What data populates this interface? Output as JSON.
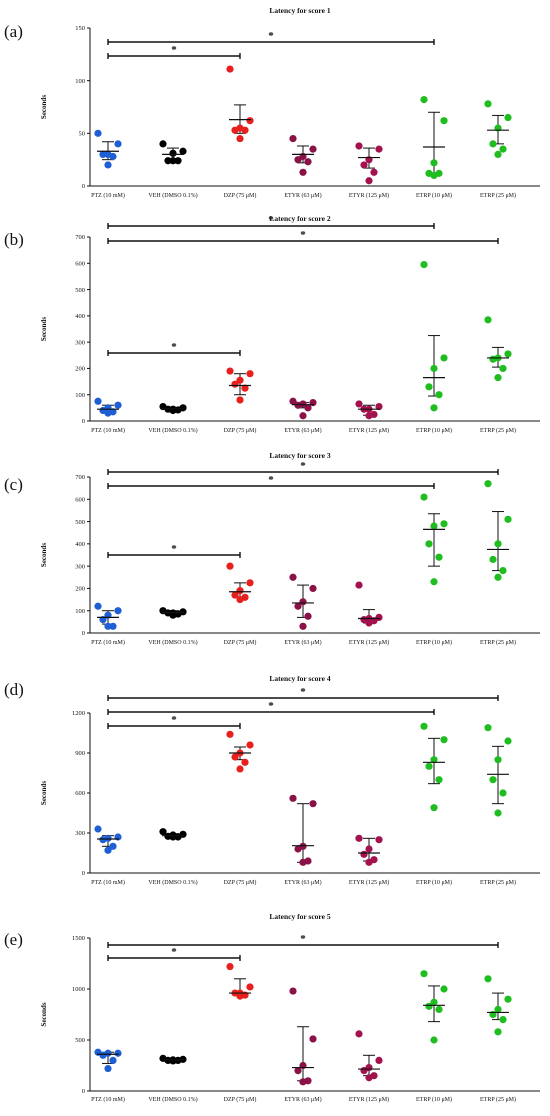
{
  "chart_data": [
    {
      "type": "scatter",
      "panel_label": "(a)",
      "title": "Latency for score 1",
      "ylabel": "Seconds",
      "ylim": [
        0,
        150
      ],
      "yticks": [
        "0",
        "50",
        "100",
        "150"
      ],
      "categories": [
        "PTZ (10 mM)",
        "VEH (DMSO 0.1%)",
        "DZP (75 μM)",
        "ETYR (63 μM)",
        "ETYR (125 μM)",
        "ETRP (10 μM)",
        "ETRP (25 μM)"
      ],
      "colors": [
        "#1f5fd6",
        "#000000",
        "#e8201d",
        "#8a1247",
        "#a3124f",
        "#1fbd1f",
        "#1fbd1f"
      ],
      "points": [
        [
          50,
          40,
          30,
          30,
          28,
          20
        ],
        [
          40,
          33,
          31,
          24,
          24,
          24
        ],
        [
          111,
          62,
          55,
          53,
          53,
          45
        ],
        [
          45,
          35,
          28,
          25,
          23,
          13
        ],
        [
          38,
          35,
          25,
          20,
          13,
          5
        ],
        [
          82,
          62,
          22,
          12,
          12,
          10
        ],
        [
          78,
          65,
          55,
          40,
          35,
          30
        ]
      ],
      "means": [
        33,
        30,
        63,
        30,
        27,
        37,
        53
      ],
      "err_low": [
        25,
        25,
        50,
        22,
        17,
        11,
        40
      ],
      "err_high": [
        42,
        36,
        77,
        38,
        36,
        70,
        67
      ],
      "significance": [
        {
          "from": 0,
          "to": 2,
          "label": "*"
        },
        {
          "from": 0,
          "to": 5,
          "label": "*"
        }
      ]
    },
    {
      "type": "scatter",
      "panel_label": "(b)",
      "title": "Latency for score 2",
      "ylabel": "Seconds",
      "ylim": [
        0,
        700
      ],
      "yticks": [
        "0",
        "100",
        "200",
        "300",
        "400",
        "500",
        "600",
        "700"
      ],
      "categories": [
        "PTZ (10 mM)",
        "VEH (DMSO 0.1%)",
        "DZP (75 μM)",
        "ETYR (63 μM)",
        "ETYR (125 μM)",
        "ETRP (10 μM)",
        "ETRP (25 μM)"
      ],
      "colors": [
        "#1f5fd6",
        "#000000",
        "#e8201d",
        "#8a1247",
        "#a3124f",
        "#1fbd1f",
        "#1fbd1f"
      ],
      "points": [
        [
          75,
          60,
          50,
          40,
          35,
          30
        ],
        [
          55,
          50,
          45,
          45,
          42,
          40
        ],
        [
          190,
          180,
          155,
          140,
          125,
          80
        ],
        [
          75,
          70,
          65,
          60,
          50,
          20
        ],
        [
          65,
          55,
          45,
          45,
          25,
          20
        ],
        [
          595,
          240,
          200,
          130,
          100,
          50
        ],
        [
          385,
          255,
          240,
          235,
          200,
          165
        ]
      ],
      "means": [
        45,
        46,
        135,
        62,
        45,
        165,
        240
      ],
      "err_low": [
        35,
        42,
        100,
        50,
        22,
        95,
        205
      ],
      "err_high": [
        60,
        50,
        180,
        70,
        60,
        325,
        280
      ],
      "significance": [
        {
          "from": 0,
          "to": 2,
          "label": "*"
        },
        {
          "from": 0,
          "to": 5,
          "label": "*"
        },
        {
          "from": 0,
          "to": 6,
          "label": "*"
        }
      ]
    },
    {
      "type": "scatter",
      "panel_label": "(c)",
      "title": "Latency for score 3",
      "ylabel": "Seconds",
      "ylim": [
        0,
        700
      ],
      "yticks": [
        "0",
        "100",
        "200",
        "300",
        "400",
        "500",
        "600",
        "700"
      ],
      "categories": [
        "PTZ (10 mM)",
        "VEH (DMSO 0.1%)",
        "DZP (75 μM)",
        "ETYR (63 μM)",
        "ETYR (125 μM)",
        "ETRP (10 μM)",
        "ETRP (25 μM)"
      ],
      "colors": [
        "#1f5fd6",
        "#000000",
        "#e8201d",
        "#8a1247",
        "#a3124f",
        "#1fbd1f",
        "#1fbd1f"
      ],
      "points": [
        [
          120,
          100,
          80,
          60,
          30,
          30
        ],
        [
          100,
          95,
          90,
          90,
          85,
          80
        ],
        [
          300,
          225,
          190,
          170,
          160,
          150
        ],
        [
          250,
          200,
          140,
          120,
          75,
          30
        ],
        [
          215,
          70,
          65,
          60,
          55,
          45
        ],
        [
          610,
          490,
          480,
          400,
          340,
          230
        ],
        [
          670,
          510,
          400,
          330,
          280,
          250
        ]
      ],
      "means": [
        70,
        92,
        185,
        135,
        65,
        465,
        375
      ],
      "err_low": [
        40,
        85,
        160,
        70,
        45,
        300,
        280
      ],
      "err_high": [
        100,
        100,
        225,
        215,
        105,
        535,
        545
      ],
      "significance": [
        {
          "from": 0,
          "to": 2,
          "label": "*"
        },
        {
          "from": 0,
          "to": 5,
          "label": "*"
        },
        {
          "from": 0,
          "to": 6,
          "label": "*"
        }
      ]
    },
    {
      "type": "scatter",
      "panel_label": "(d)",
      "title": "Latency for score 4",
      "ylabel": "Seconds",
      "ylim": [
        0,
        1200
      ],
      "yticks": [
        "0",
        "300",
        "600",
        "900",
        "1200"
      ],
      "categories": [
        "PTZ (10 mM)",
        "VEH (DMSO 0.1%)",
        "DZP (75 μM)",
        "ETYR (63 μM)",
        "ETYR (125 μM)",
        "ETRP (10 μM)",
        "ETRP (25 μM)"
      ],
      "colors": [
        "#1f5fd6",
        "#000000",
        "#e8201d",
        "#8a1247",
        "#a3124f",
        "#1fbd1f",
        "#1fbd1f"
      ],
      "points": [
        [
          330,
          270,
          260,
          250,
          200,
          170
        ],
        [
          310,
          290,
          285,
          275,
          270,
          270
        ],
        [
          1040,
          960,
          900,
          870,
          830,
          780
        ],
        [
          560,
          520,
          200,
          180,
          90,
          80
        ],
        [
          260,
          250,
          180,
          140,
          100,
          80
        ],
        [
          1100,
          1000,
          850,
          800,
          700,
          490
        ],
        [
          1090,
          990,
          850,
          700,
          600,
          450
        ]
      ],
      "means": [
        255,
        280,
        900,
        205,
        150,
        830,
        740
      ],
      "err_low": [
        200,
        270,
        850,
        80,
        90,
        670,
        520
      ],
      "err_high": [
        280,
        295,
        945,
        520,
        260,
        1010,
        950
      ],
      "significance": [
        {
          "from": 0,
          "to": 2,
          "label": "*"
        },
        {
          "from": 0,
          "to": 5,
          "label": "*"
        },
        {
          "from": 0,
          "to": 6,
          "label": "*"
        }
      ]
    },
    {
      "type": "scatter",
      "panel_label": "(e)",
      "title": "Latency for score 5",
      "ylabel": "Seconds",
      "ylim": [
        0,
        1500
      ],
      "yticks": [
        "0",
        "500",
        "1000",
        "1500"
      ],
      "categories": [
        "PTZ (10 mM)",
        "VEH (DMSO 0.1%)",
        "DZP (75 μM)",
        "ETYR (63 μM)",
        "ETYR (125 μM)",
        "ETRP (10 μM)",
        "ETRP (25 μM)"
      ],
      "colors": [
        "#1f5fd6",
        "#000000",
        "#e8201d",
        "#8a1247",
        "#a3124f",
        "#1fbd1f",
        "#1fbd1f"
      ],
      "points": [
        [
          380,
          370,
          370,
          350,
          300,
          220
        ],
        [
          320,
          310,
          305,
          300,
          300,
          295
        ],
        [
          1220,
          1020,
          960,
          960,
          940,
          930
        ],
        [
          980,
          510,
          250,
          200,
          100,
          90
        ],
        [
          560,
          300,
          230,
          200,
          150,
          130
        ],
        [
          1150,
          1000,
          870,
          830,
          800,
          500
        ],
        [
          1100,
          900,
          800,
          750,
          700,
          580
        ]
      ],
      "means": [
        360,
        305,
        960,
        230,
        215,
        840,
        770
      ],
      "err_low": [
        270,
        298,
        940,
        100,
        150,
        680,
        700
      ],
      "err_high": [
        380,
        312,
        1100,
        630,
        350,
        1030,
        960
      ],
      "significance": [
        {
          "from": 0,
          "to": 2,
          "label": "*"
        },
        {
          "from": 0,
          "to": 6,
          "label": "*"
        }
      ]
    }
  ]
}
